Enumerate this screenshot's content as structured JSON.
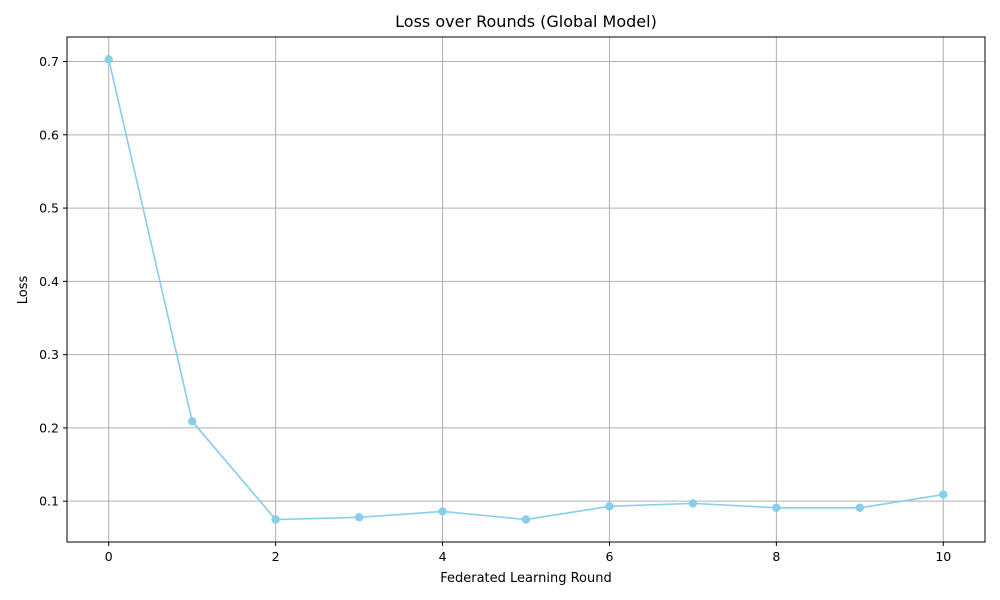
{
  "chart_data": {
    "type": "line",
    "title": "Loss over Rounds (Global Model)",
    "xlabel": "Federated Learning Round",
    "ylabel": "Loss",
    "xlim": [
      -0.5,
      10.5
    ],
    "ylim": [
      0.0443,
      0.7335
    ],
    "xticks": [
      0,
      2,
      4,
      6,
      8,
      10
    ],
    "yticks": [
      0.1,
      0.2,
      0.3,
      0.4,
      0.5,
      0.6,
      0.7
    ],
    "grid": true,
    "legend": "none",
    "series": [
      {
        "color": "#87ceeb",
        "marker": "circle",
        "x": [
          0,
          1,
          2,
          3,
          4,
          5,
          6,
          7,
          8,
          9,
          10
        ],
        "y": [
          0.703,
          0.209,
          0.075,
          0.078,
          0.086,
          0.075,
          0.093,
          0.097,
          0.091,
          0.091,
          0.109
        ]
      }
    ]
  }
}
